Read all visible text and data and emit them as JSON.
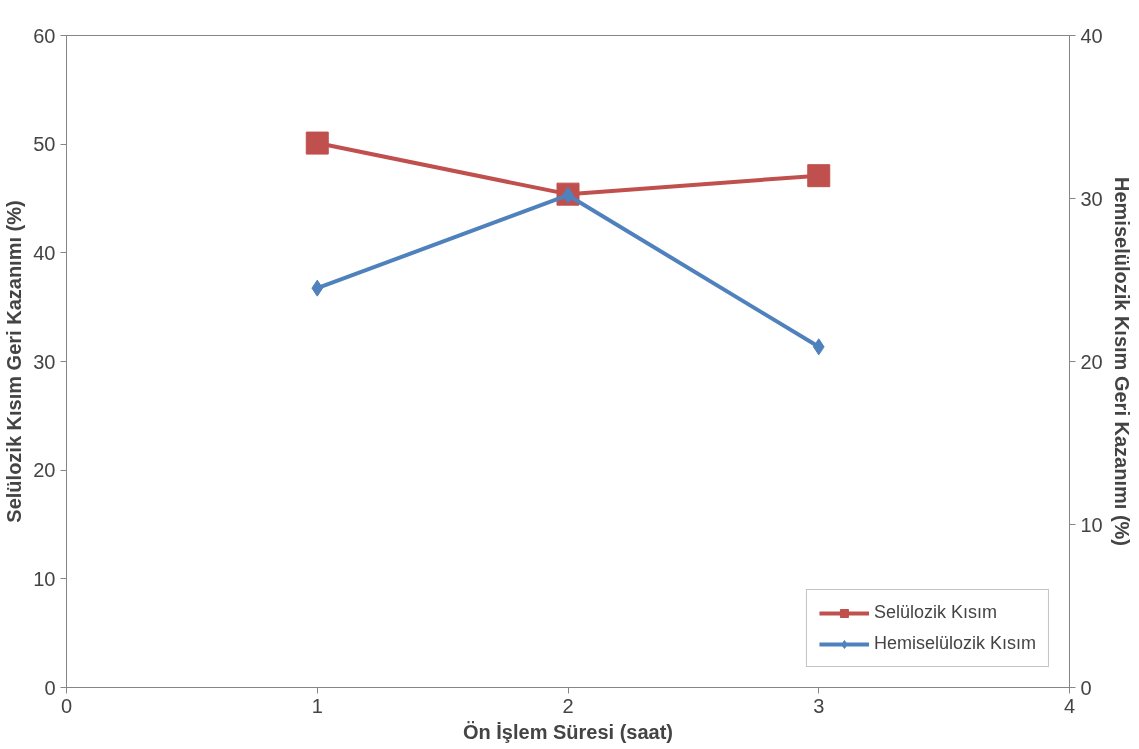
{
  "chart_data": {
    "type": "line",
    "xlabel": "Ön İşlem Süresi (saat)",
    "ylabel": "Selülozik Kısım Geri Kazanımı (%)",
    "y2label": "Hemiselülozik Kısım Geri Kazanımı (%)",
    "x": [
      1,
      2,
      3
    ],
    "series": [
      {
        "name": "Selülozik Kısım",
        "color": "#c0504d",
        "values": [
          50.1,
          45.4,
          47.1
        ],
        "marker": "square"
      },
      {
        "name": "Hemiselülozik Kısım",
        "color": "#4f81bd",
        "values": [
          24.5,
          30.2,
          20.9
        ],
        "marker": "diamond",
        "axis": "y2"
      }
    ],
    "xlim": [
      0,
      4
    ],
    "xticks": [
      0,
      1,
      2,
      3,
      4
    ],
    "ylim": [
      0,
      60
    ],
    "yticks": [
      0,
      10,
      20,
      30,
      40,
      50,
      60
    ],
    "y2lim": [
      0,
      40
    ],
    "y2ticks": [
      0,
      10,
      20,
      30,
      40
    ],
    "grid": false,
    "legend": "bottom right",
    "line_style": "solid"
  }
}
